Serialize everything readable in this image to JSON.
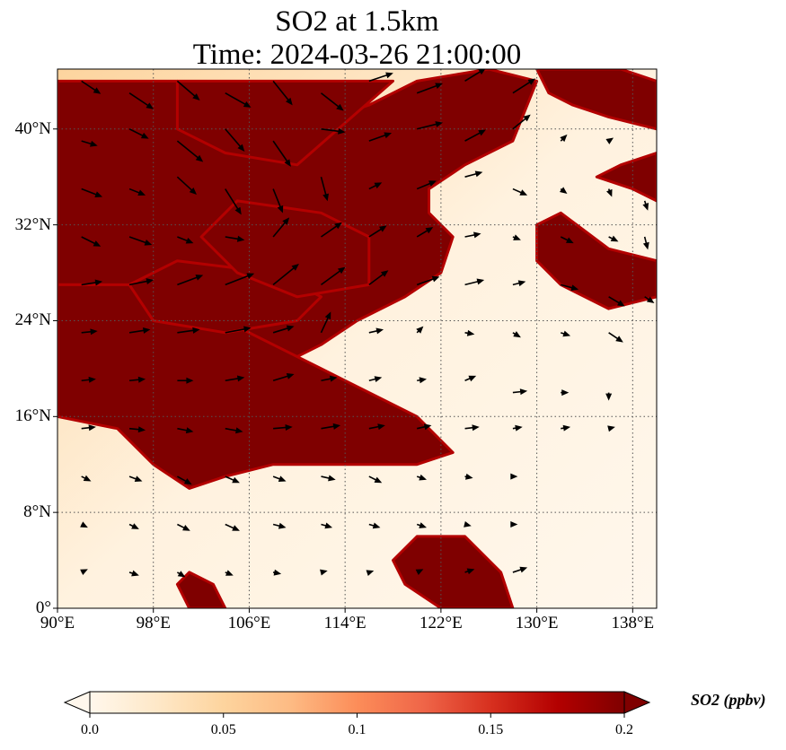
{
  "title": "SO2 at 1.5km",
  "subtitle": "Time: 2024-03-26 21:00:00",
  "map": {
    "projection": "PlateCarree",
    "lon_range": [
      90,
      140
    ],
    "lat_range": [
      0,
      45
    ],
    "gridlines": "dotted",
    "lat_ticks": [
      {
        "value": 0,
        "label": "0°"
      },
      {
        "value": 8,
        "label": "8°N"
      },
      {
        "value": 16,
        "label": "16°N"
      },
      {
        "value": 24,
        "label": "24°N"
      },
      {
        "value": 32,
        "label": "32°N"
      },
      {
        "value": 40,
        "label": "40°N"
      }
    ],
    "lon_ticks": [
      {
        "value": 90,
        "label": "90°E"
      },
      {
        "value": 98,
        "label": "98°E"
      },
      {
        "value": 106,
        "label": "106°E"
      },
      {
        "value": 114,
        "label": "114°E"
      },
      {
        "value": 122,
        "label": "122°E"
      },
      {
        "value": 130,
        "label": "130°E"
      },
      {
        "value": 138,
        "label": "138°E"
      }
    ],
    "field": "SO2 concentration (ppbv)",
    "high_concentration_regions_lonlat": [
      [
        [
          90,
          44
        ],
        [
          100,
          44
        ],
        [
          105,
          41
        ],
        [
          110,
          40
        ],
        [
          116,
          42
        ],
        [
          120,
          44
        ],
        [
          126,
          45
        ],
        [
          130,
          44
        ],
        [
          128,
          39
        ],
        [
          124,
          37
        ],
        [
          121,
          35
        ],
        [
          121,
          33
        ],
        [
          123,
          31
        ],
        [
          122,
          28
        ],
        [
          119,
          26
        ],
        [
          115,
          24
        ],
        [
          112,
          22
        ],
        [
          108,
          20
        ],
        [
          105,
          20
        ],
        [
          100,
          22
        ],
        [
          96,
          25
        ],
        [
          92,
          27
        ],
        [
          90,
          27
        ]
      ],
      [
        [
          90,
          27
        ],
        [
          96,
          27
        ],
        [
          100,
          26
        ],
        [
          104,
          24
        ],
        [
          108,
          22
        ],
        [
          112,
          20
        ],
        [
          116,
          18
        ],
        [
          120,
          16
        ],
        [
          123,
          13
        ],
        [
          120,
          12
        ],
        [
          117,
          12
        ],
        [
          113,
          12
        ],
        [
          108,
          12
        ],
        [
          104,
          11
        ],
        [
          101,
          10
        ],
        [
          98,
          12
        ],
        [
          95,
          15
        ],
        [
          90,
          16
        ]
      ],
      [
        [
          100,
          44
        ],
        [
          110,
          44
        ],
        [
          118,
          44
        ],
        [
          110,
          37
        ],
        [
          104,
          38
        ],
        [
          100,
          40
        ]
      ],
      [
        [
          130,
          45
        ],
        [
          137,
          45
        ],
        [
          140,
          44
        ],
        [
          140,
          40
        ],
        [
          136,
          41
        ],
        [
          133,
          42
        ],
        [
          131,
          43
        ]
      ],
      [
        [
          132,
          33
        ],
        [
          136,
          30
        ],
        [
          140,
          29
        ],
        [
          140,
          26
        ],
        [
          136,
          25
        ],
        [
          132,
          27
        ],
        [
          130,
          29
        ],
        [
          130,
          32
        ]
      ],
      [
        [
          135,
          36
        ],
        [
          138,
          35
        ],
        [
          140,
          34
        ],
        [
          140,
          38
        ],
        [
          137,
          37
        ]
      ],
      [
        [
          120,
          6
        ],
        [
          124,
          6
        ],
        [
          127,
          3
        ],
        [
          128,
          0
        ],
        [
          122,
          0
        ],
        [
          119,
          2
        ],
        [
          118,
          4
        ]
      ],
      [
        [
          101,
          3
        ],
        [
          103,
          2
        ],
        [
          104,
          0
        ],
        [
          101,
          0
        ],
        [
          100,
          2
        ]
      ],
      [
        [
          98,
          24
        ],
        [
          104,
          23
        ],
        [
          110,
          24
        ],
        [
          112,
          26
        ],
        [
          108,
          28
        ],
        [
          100,
          29
        ],
        [
          96,
          27
        ]
      ],
      [
        [
          105,
          34
        ],
        [
          112,
          33
        ],
        [
          116,
          31
        ],
        [
          116,
          27
        ],
        [
          110,
          26
        ],
        [
          105,
          28
        ],
        [
          102,
          31
        ]
      ]
    ],
    "wind_vectors": [
      [
        92,
        44,
        1.2,
        -0.8
      ],
      [
        96,
        43,
        1.5,
        -1.0
      ],
      [
        100,
        44,
        1.4,
        -1.2
      ],
      [
        104,
        43,
        1.6,
        -0.9
      ],
      [
        108,
        44,
        1.2,
        -1.5
      ],
      [
        112,
        43,
        1.4,
        -1.1
      ],
      [
        116,
        44,
        1.5,
        0.5
      ],
      [
        120,
        43,
        1.6,
        0.6
      ],
      [
        124,
        44,
        1.3,
        0.8
      ],
      [
        128,
        43,
        1.4,
        0.9
      ],
      [
        92,
        39,
        1.0,
        -0.3
      ],
      [
        96,
        40,
        1.2,
        -0.6
      ],
      [
        100,
        39,
        1.6,
        -1.3
      ],
      [
        104,
        40,
        1.2,
        -1.4
      ],
      [
        108,
        39,
        1.1,
        -1.6
      ],
      [
        112,
        40,
        1.5,
        -0.2
      ],
      [
        116,
        39,
        1.4,
        0.5
      ],
      [
        120,
        40,
        1.6,
        0.4
      ],
      [
        124,
        39,
        1.3,
        0.7
      ],
      [
        128,
        40,
        1.1,
        0.9
      ],
      [
        132,
        39,
        0.4,
        0.4
      ],
      [
        136,
        39,
        0.3,
        0.2
      ],
      [
        92,
        35,
        1.3,
        -0.5
      ],
      [
        96,
        35,
        1.0,
        -0.4
      ],
      [
        100,
        36,
        1.2,
        -1.1
      ],
      [
        104,
        35,
        1.0,
        -1.6
      ],
      [
        108,
        35,
        0.6,
        -1.5
      ],
      [
        112,
        36,
        0.4,
        -1.5
      ],
      [
        116,
        35,
        0.8,
        0.4
      ],
      [
        120,
        35,
        1.2,
        0.5
      ],
      [
        124,
        36,
        1.1,
        0.3
      ],
      [
        128,
        35,
        0.9,
        -0.4
      ],
      [
        132,
        35,
        0.4,
        -0.3
      ],
      [
        136,
        35,
        0.2,
        -0.5
      ],
      [
        139,
        34,
        0.2,
        -0.6
      ],
      [
        92,
        31,
        1.2,
        -0.6
      ],
      [
        96,
        31,
        1.4,
        -0.5
      ],
      [
        100,
        31,
        1.0,
        -0.4
      ],
      [
        104,
        31,
        1.2,
        -0.2
      ],
      [
        108,
        31,
        1.0,
        1.2
      ],
      [
        112,
        31,
        1.3,
        0.9
      ],
      [
        116,
        31,
        1.1,
        0.7
      ],
      [
        120,
        31,
        1.0,
        0.6
      ],
      [
        124,
        31,
        1.0,
        0.2
      ],
      [
        128,
        31,
        0.5,
        -0.2
      ],
      [
        132,
        31,
        0.8,
        -0.4
      ],
      [
        136,
        31,
        0.6,
        -0.3
      ],
      [
        139,
        31,
        0.2,
        -0.8
      ],
      [
        92,
        27,
        1.3,
        0.2
      ],
      [
        96,
        27,
        1.5,
        0.3
      ],
      [
        100,
        27,
        1.6,
        0.6
      ],
      [
        104,
        27,
        1.8,
        0.7
      ],
      [
        108,
        27,
        1.6,
        1.3
      ],
      [
        112,
        27,
        1.5,
        1.1
      ],
      [
        116,
        27,
        1.2,
        0.9
      ],
      [
        120,
        27,
        1.4,
        0.5
      ],
      [
        124,
        27,
        1.2,
        0.3
      ],
      [
        128,
        27,
        0.8,
        0.2
      ],
      [
        132,
        27,
        1.1,
        -0.3
      ],
      [
        136,
        26,
        1.0,
        -0.6
      ],
      [
        139,
        26,
        0.6,
        -0.4
      ],
      [
        92,
        23,
        1.0,
        0.1
      ],
      [
        96,
        23,
        1.3,
        0.2
      ],
      [
        100,
        23,
        1.4,
        0.2
      ],
      [
        104,
        23,
        1.6,
        0.3
      ],
      [
        108,
        23,
        1.3,
        0.4
      ],
      [
        112,
        23,
        0.6,
        1.3
      ],
      [
        116,
        23,
        0.9,
        0.2
      ],
      [
        120,
        23,
        0.4,
        0.4
      ],
      [
        124,
        23,
        0.6,
        -0.1
      ],
      [
        128,
        23,
        0.5,
        -0.3
      ],
      [
        132,
        23,
        0.6,
        -0.2
      ],
      [
        136,
        23,
        0.9,
        -0.6
      ],
      [
        92,
        19,
        0.9,
        0.1
      ],
      [
        96,
        19,
        1.0,
        0.1
      ],
      [
        100,
        19,
        1.0,
        0.0
      ],
      [
        104,
        19,
        1.2,
        0.2
      ],
      [
        108,
        19,
        1.3,
        0.4
      ],
      [
        112,
        19,
        1.0,
        0.2
      ],
      [
        116,
        19,
        0.8,
        0.2
      ],
      [
        120,
        19,
        0.6,
        0.1
      ],
      [
        124,
        19,
        0.7,
        0.3
      ],
      [
        128,
        18,
        0.9,
        0.1
      ],
      [
        132,
        18,
        0.5,
        0.0
      ],
      [
        136,
        18,
        0.0,
        -0.5
      ],
      [
        92,
        15,
        0.9,
        0.1
      ],
      [
        96,
        15,
        1.0,
        -0.1
      ],
      [
        100,
        15,
        1.0,
        -0.2
      ],
      [
        104,
        15,
        1.1,
        -0.2
      ],
      [
        108,
        15,
        1.2,
        0.1
      ],
      [
        112,
        15,
        1.2,
        0.2
      ],
      [
        116,
        15,
        1.0,
        0.2
      ],
      [
        120,
        15,
        0.9,
        0.2
      ],
      [
        124,
        15,
        0.9,
        0.1
      ],
      [
        128,
        15,
        0.6,
        0.1
      ],
      [
        132,
        15,
        0.6,
        0.1
      ],
      [
        136,
        15,
        0.4,
        0.1
      ],
      [
        92,
        11,
        0.6,
        -0.3
      ],
      [
        96,
        11,
        0.8,
        -0.3
      ],
      [
        100,
        11,
        0.9,
        -0.5
      ],
      [
        104,
        11,
        0.9,
        -0.4
      ],
      [
        108,
        11,
        0.8,
        -0.3
      ],
      [
        112,
        11,
        0.9,
        -0.2
      ],
      [
        116,
        11,
        0.8,
        -0.4
      ],
      [
        120,
        11,
        0.6,
        -0.2
      ],
      [
        124,
        11,
        0.5,
        -0.1
      ],
      [
        128,
        11,
        0.3,
        0.0
      ],
      [
        92,
        7,
        0.4,
        -0.2
      ],
      [
        96,
        7,
        0.6,
        -0.3
      ],
      [
        100,
        7,
        0.8,
        -0.4
      ],
      [
        104,
        7,
        0.9,
        -0.4
      ],
      [
        108,
        7,
        0.8,
        -0.2
      ],
      [
        112,
        7,
        0.7,
        -0.2
      ],
      [
        116,
        7,
        0.7,
        -0.2
      ],
      [
        120,
        7,
        0.6,
        -0.2
      ],
      [
        124,
        7,
        0.4,
        -0.1
      ],
      [
        128,
        7,
        0.3,
        0.0
      ],
      [
        92,
        3,
        0.4,
        0.2
      ],
      [
        96,
        3,
        0.6,
        -0.2
      ],
      [
        100,
        3,
        0.5,
        -0.3
      ],
      [
        104,
        3,
        0.5,
        -0.2
      ],
      [
        108,
        3,
        0.5,
        -0.1
      ],
      [
        112,
        3,
        0.4,
        0.1
      ],
      [
        116,
        3,
        0.3,
        0.1
      ],
      [
        120,
        3,
        0.4,
        0.2
      ],
      [
        124,
        3,
        0.6,
        0.2
      ],
      [
        128,
        3,
        0.9,
        0.3
      ]
    ]
  },
  "colorbar": {
    "label": "SO2 (ppbv)",
    "min": 0.0,
    "max": 0.2,
    "extend": "both",
    "ticks": [
      {
        "value": 0.0,
        "label": "0.0"
      },
      {
        "value": 0.05,
        "label": "0.05"
      },
      {
        "value": 0.1,
        "label": "0.1"
      },
      {
        "value": 0.15,
        "label": "0.15"
      },
      {
        "value": 0.2,
        "label": "0.2"
      }
    ],
    "colors": [
      "#fff7ec",
      "#fee8c8",
      "#fdd49e",
      "#fdbb84",
      "#fc8d59",
      "#ef6548",
      "#d7301f",
      "#b30000",
      "#7f0000"
    ]
  }
}
